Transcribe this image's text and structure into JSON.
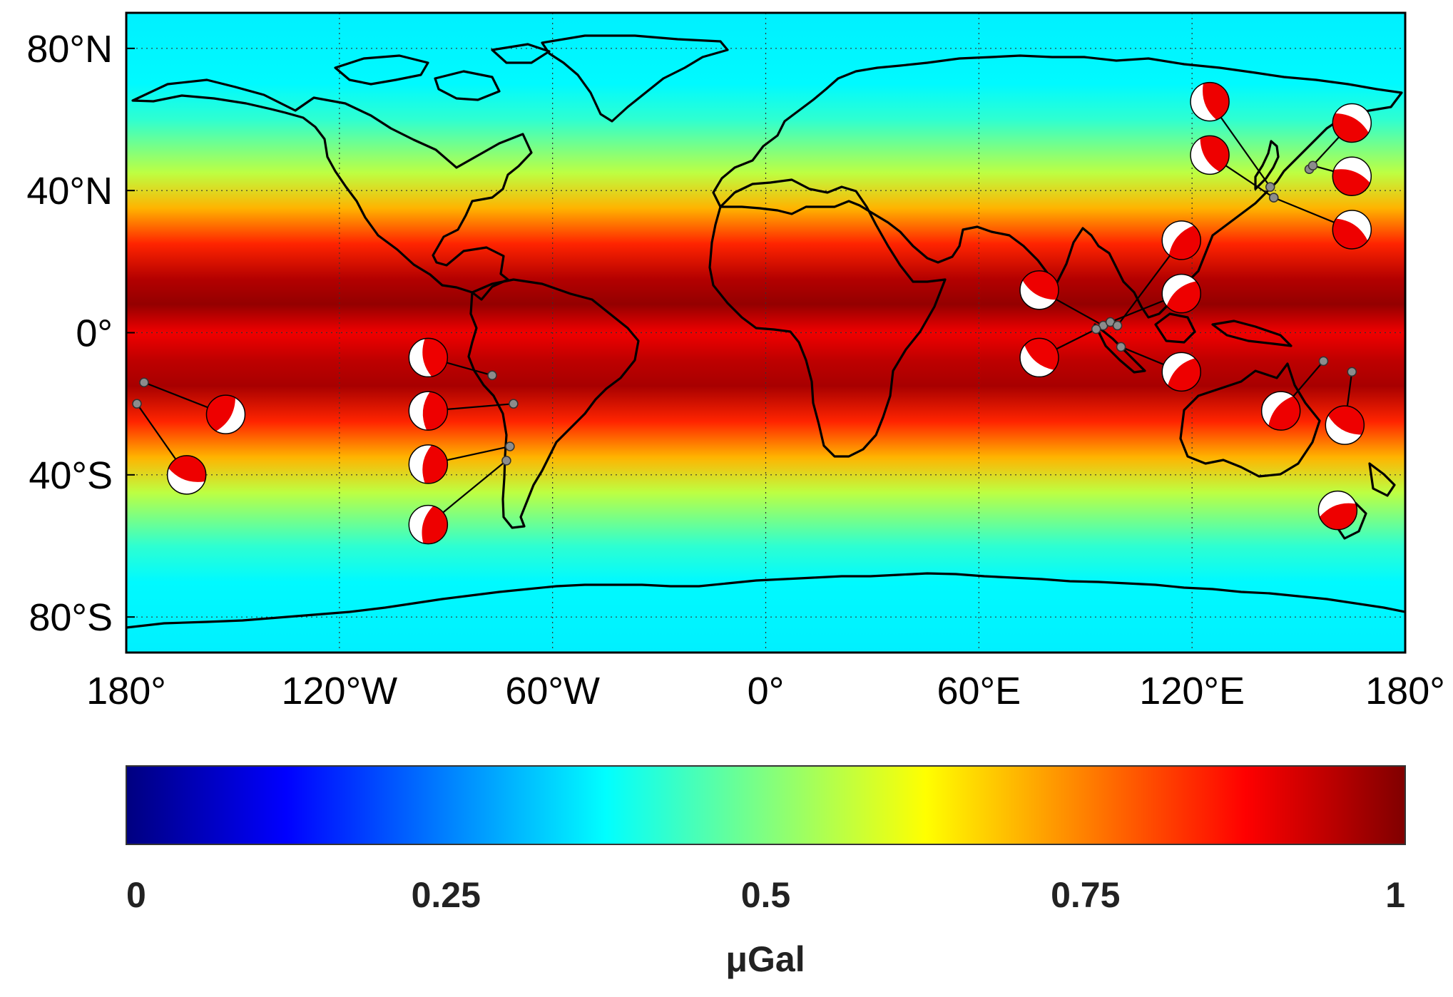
{
  "map": {
    "lat_labels": [
      {
        "lat": 80,
        "text": "80°N"
      },
      {
        "lat": 40,
        "text": "40°N"
      },
      {
        "lat": 0,
        "text": "0°"
      },
      {
        "lat": -40,
        "text": "40°S"
      },
      {
        "lat": -80,
        "text": "80°S"
      }
    ],
    "lon_labels": [
      {
        "lon": -180,
        "text": "180°"
      },
      {
        "lon": -120,
        "text": "120°W"
      },
      {
        "lon": -60,
        "text": "60°W"
      },
      {
        "lon": 0,
        "text": "0°"
      },
      {
        "lon": 60,
        "text": "60°E"
      },
      {
        "lon": 120,
        "text": "120°E"
      },
      {
        "lon": 180,
        "text": "180°"
      }
    ],
    "extent": {
      "lon": [
        -180,
        180
      ],
      "lat": [
        -90,
        90
      ]
    },
    "field_profile": [
      {
        "lat": 90,
        "v": 0.36
      },
      {
        "lat": 70,
        "v": 0.37
      },
      {
        "lat": 60,
        "v": 0.42
      },
      {
        "lat": 45,
        "v": 0.56
      },
      {
        "lat": 35,
        "v": 0.7
      },
      {
        "lat": 25,
        "v": 0.84
      },
      {
        "lat": 15,
        "v": 0.95
      },
      {
        "lat": 8,
        "v": 0.98
      },
      {
        "lat": 0,
        "v": 0.89
      },
      {
        "lat": -8,
        "v": 0.94
      },
      {
        "lat": -15,
        "v": 0.96
      },
      {
        "lat": -25,
        "v": 0.84
      },
      {
        "lat": -35,
        "v": 0.7
      },
      {
        "lat": -45,
        "v": 0.56
      },
      {
        "lat": -60,
        "v": 0.42
      },
      {
        "lat": -70,
        "v": 0.37
      },
      {
        "lat": -90,
        "v": 0.36
      }
    ],
    "earthquakes": [
      {
        "epicenter": [
          -175,
          -14
        ],
        "ball": [
          -152,
          -23
        ],
        "strike": 300
      },
      {
        "epicenter": [
          -177,
          -20
        ],
        "ball": [
          -163,
          -40
        ],
        "strike": 20
      },
      {
        "epicenter": [
          -77,
          -12
        ],
        "ball": [
          -95,
          -7
        ],
        "strike": 80
      },
      {
        "epicenter": [
          -71,
          -20
        ],
        "ball": [
          -95,
          -22
        ],
        "strike": 95
      },
      {
        "epicenter": [
          -72,
          -32
        ],
        "ball": [
          -95,
          -37
        ],
        "strike": 100
      },
      {
        "epicenter": [
          -73,
          -36
        ],
        "ball": [
          -95,
          -54
        ],
        "strike": 105
      },
      {
        "epicenter": [
          95,
          2
        ],
        "ball": [
          77,
          12
        ],
        "strike": 30
      },
      {
        "epicenter": [
          93,
          1
        ],
        "ball": [
          77,
          -7
        ],
        "strike": 40
      },
      {
        "epicenter": [
          100,
          -4
        ],
        "ball": [
          117,
          -11
        ],
        "strike": 135
      },
      {
        "epicenter": [
          97,
          3
        ],
        "ball": [
          117,
          11
        ],
        "strike": 140
      },
      {
        "epicenter": [
          99,
          2
        ],
        "ball": [
          117,
          26
        ],
        "strike": 130
      },
      {
        "epicenter": [
          142,
          41
        ],
        "ball": [
          125,
          65
        ],
        "strike": 70
      },
      {
        "epicenter": [
          143,
          38
        ],
        "ball": [
          125,
          50
        ],
        "strike": 60
      },
      {
        "epicenter": [
          153,
          46
        ],
        "ball": [
          165,
          59
        ],
        "strike": 210
      },
      {
        "epicenter": [
          154,
          47
        ],
        "ball": [
          165,
          44
        ],
        "strike": 200
      },
      {
        "epicenter": [
          143,
          38
        ],
        "ball": [
          165,
          29
        ],
        "strike": 215
      },
      {
        "epicenter": [
          157,
          -8
        ],
        "ball": [
          145,
          -22
        ],
        "strike": 130
      },
      {
        "epicenter": [
          165,
          -11
        ],
        "ball": [
          163,
          -26
        ],
        "strike": 30
      },
      {
        "epicenter": [
          162,
          -50
        ],
        "ball": [
          161,
          -50
        ],
        "strike": 160
      }
    ]
  },
  "colorbar": {
    "ticks": [
      {
        "value": 0,
        "text": "0"
      },
      {
        "value": 0.25,
        "text": "0.25"
      },
      {
        "value": 0.5,
        "text": "0.5"
      },
      {
        "value": 0.75,
        "text": "0.75"
      },
      {
        "value": 1,
        "text": "1"
      }
    ],
    "unit": "μGal",
    "range": [
      0,
      1
    ]
  },
  "colors": {
    "coastline": "#000000",
    "beachball_fill": "#ee0000",
    "beachball_white": "#ffffff",
    "epicenter": "#8c8c8c"
  }
}
